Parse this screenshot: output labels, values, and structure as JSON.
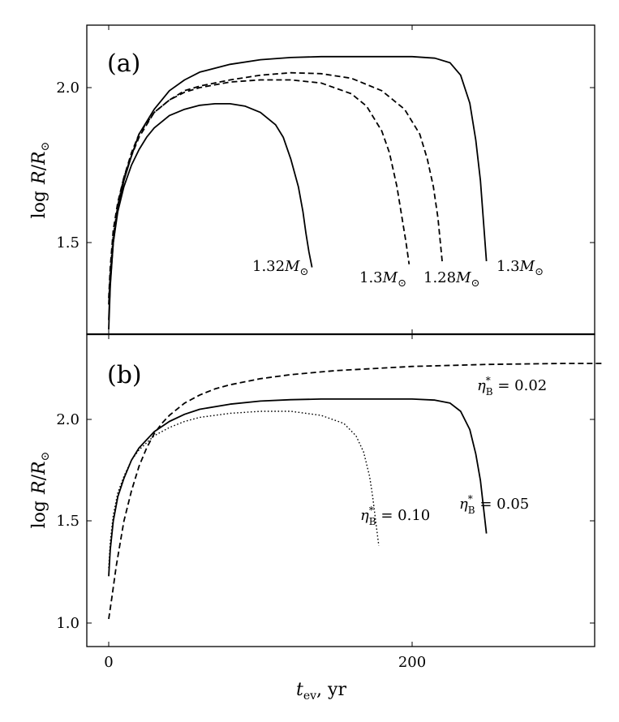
{
  "chart_data": [
    {
      "type": "line",
      "panel_label": "(a)",
      "ylabel": "log R/R⊙",
      "xlim": [
        -7,
        325
      ],
      "ylim": [
        1.18,
        2.2
      ],
      "yticks": [
        1.5,
        2.0
      ],
      "ytick_labels": [
        "1.5",
        "2.0"
      ],
      "xticks": [
        0,
        200
      ],
      "series": [
        {
          "name": "1.32M⊙",
          "style": "solid",
          "x": [
            0,
            1,
            3,
            6,
            10,
            15,
            20,
            25,
            30,
            40,
            50,
            60,
            70,
            80,
            90,
            100,
            110,
            115,
            120,
            125,
            128,
            130,
            132,
            134
          ],
          "y": [
            1.22,
            1.36,
            1.5,
            1.6,
            1.68,
            1.75,
            1.8,
            1.84,
            1.87,
            1.91,
            1.93,
            1.943,
            1.948,
            1.948,
            1.94,
            1.92,
            1.88,
            1.84,
            1.77,
            1.68,
            1.6,
            1.53,
            1.47,
            1.42
          ]
        },
        {
          "name": "1.3M⊙",
          "style": "dashed",
          "x": [
            0,
            1,
            3,
            6,
            10,
            15,
            20,
            30,
            40,
            50,
            60,
            80,
            100,
            120,
            140,
            160,
            170,
            180,
            185,
            190,
            193,
            196,
            198
          ],
          "y": [
            1.3,
            1.4,
            1.52,
            1.62,
            1.71,
            1.79,
            1.85,
            1.92,
            1.96,
            1.985,
            2.0,
            2.018,
            2.025,
            2.025,
            2.015,
            1.98,
            1.94,
            1.86,
            1.79,
            1.68,
            1.59,
            1.5,
            1.43
          ]
        },
        {
          "name": "1.28M⊙",
          "style": "dashed",
          "x": [
            0,
            1,
            3,
            6,
            10,
            15,
            20,
            30,
            40,
            50,
            60,
            80,
            100,
            120,
            140,
            160,
            180,
            195,
            205,
            210,
            214,
            217,
            220
          ],
          "y": [
            1.32,
            1.42,
            1.54,
            1.63,
            1.71,
            1.78,
            1.84,
            1.92,
            1.96,
            1.99,
            2.005,
            2.025,
            2.04,
            2.048,
            2.045,
            2.03,
            1.99,
            1.93,
            1.85,
            1.77,
            1.68,
            1.58,
            1.43
          ]
        },
        {
          "name": "1.3M⊙",
          "style": "solid",
          "x": [
            0,
            1,
            3,
            6,
            10,
            15,
            20,
            30,
            40,
            50,
            60,
            80,
            100,
            120,
            140,
            160,
            180,
            200,
            215,
            225,
            232,
            238,
            242,
            245,
            247,
            249
          ],
          "y": [
            1.25,
            1.37,
            1.5,
            1.61,
            1.7,
            1.78,
            1.85,
            1.93,
            1.99,
            2.025,
            2.05,
            2.075,
            2.09,
            2.097,
            2.1,
            2.1,
            2.1,
            2.1,
            2.095,
            2.08,
            2.04,
            1.95,
            1.83,
            1.7,
            1.57,
            1.44
          ]
        }
      ],
      "annotations": [
        "1.32M⊙",
        "1.3M⊙",
        "1.28M⊙",
        "1.3M⊙"
      ]
    },
    {
      "type": "line",
      "panel_label": "(b)",
      "xlabel": "t_ev, yr",
      "ylabel": "log R/R⊙",
      "xlim": [
        -7,
        325
      ],
      "ylim": [
        0.9,
        2.35
      ],
      "yticks": [
        1.0,
        1.5,
        2.0
      ],
      "ytick_labels": [
        "1.0",
        "1.5",
        "2.0"
      ],
      "xticks": [
        0,
        200
      ],
      "xtick_labels": [
        "0",
        "200"
      ],
      "series": [
        {
          "name": "η*B = 0.02",
          "style": "dashed",
          "x": [
            0,
            2,
            5,
            10,
            15,
            20,
            25,
            30,
            35,
            40,
            50,
            60,
            70,
            80,
            100,
            120,
            150,
            200,
            250,
            300,
            325
          ],
          "y": [
            1.02,
            1.12,
            1.28,
            1.5,
            1.65,
            1.77,
            1.86,
            1.93,
            1.98,
            2.02,
            2.08,
            2.12,
            2.15,
            2.17,
            2.2,
            2.22,
            2.24,
            2.26,
            2.27,
            2.275,
            2.275
          ]
        },
        {
          "name": "η*B = 0.05",
          "style": "solid",
          "x": [
            0,
            1,
            3,
            6,
            10,
            15,
            20,
            30,
            40,
            50,
            60,
            80,
            100,
            120,
            140,
            160,
            180,
            200,
            215,
            225,
            232,
            238,
            242,
            245,
            247,
            249
          ],
          "y": [
            1.23,
            1.36,
            1.5,
            1.62,
            1.71,
            1.8,
            1.86,
            1.94,
            1.99,
            2.025,
            2.05,
            2.075,
            2.09,
            2.097,
            2.1,
            2.1,
            2.1,
            2.1,
            2.095,
            2.08,
            2.04,
            1.95,
            1.83,
            1.7,
            1.57,
            1.44
          ]
        },
        {
          "name": "η*B = 0.10",
          "style": "dotted",
          "x": [
            0,
            1,
            3,
            6,
            10,
            15,
            20,
            30,
            40,
            50,
            60,
            80,
            100,
            120,
            140,
            155,
            163,
            168,
            172,
            174,
            176,
            178
          ],
          "y": [
            1.27,
            1.4,
            1.53,
            1.64,
            1.72,
            1.8,
            1.85,
            1.92,
            1.96,
            1.99,
            2.01,
            2.03,
            2.04,
            2.04,
            2.02,
            1.98,
            1.92,
            1.84,
            1.72,
            1.62,
            1.5,
            1.38
          ]
        }
      ],
      "annotations": [
        "η*B = 0.02",
        "η*B = 0.05",
        "η*B = 0.10"
      ]
    }
  ],
  "text": {
    "panel_a_label": "(a)",
    "panel_b_label": "(b)",
    "log_word": "log",
    "r_symbol": "R",
    "rsun_symbol": "R",
    "sun_sub": "⊙",
    "x_t": "t",
    "x_sub": "ev",
    "x_unit": ",  yr",
    "tick_a_20": "2.0",
    "tick_a_15": "1.5",
    "tick_b_20": "2.0",
    "tick_b_15": "1.5",
    "tick_b_10": "1.0",
    "tick_x_0": "0",
    "tick_x_200": "200",
    "anno_a1_num": "1.32",
    "anno_a2_num": "1.3",
    "anno_a3_num": "1.28",
    "anno_a4_num": "1.3",
    "anno_m": "M",
    "eta": "η",
    "star": "*",
    "b_sub": "B",
    "anno_b1_val": " = 0.02",
    "anno_b2_val": " = 0.05",
    "anno_b3_val": " = 0.10"
  }
}
